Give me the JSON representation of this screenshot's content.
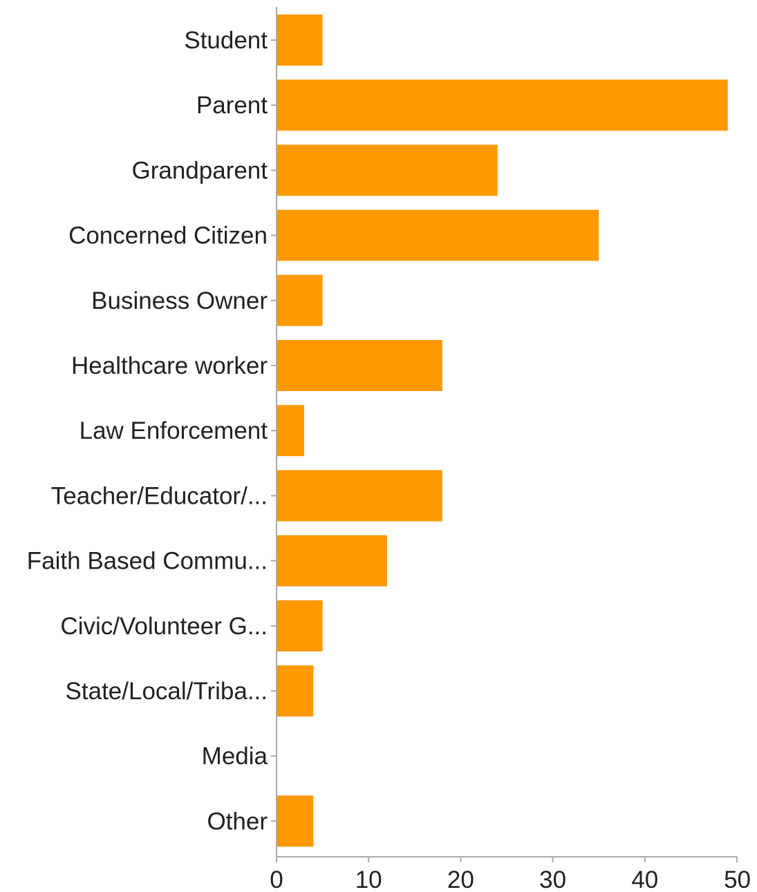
{
  "chart_data": {
    "type": "bar",
    "orientation": "horizontal",
    "categories": [
      "Student",
      "Parent",
      "Grandparent",
      "Concerned Citizen",
      "Business Owner",
      "Healthcare worker",
      "Law Enforcement",
      "Teacher/Educator/...",
      "Faith Based Commu...",
      "Civic/Volunteer G...",
      "State/Local/Triba...",
      "Media",
      "Other"
    ],
    "values": [
      5,
      49,
      24,
      35,
      5,
      18,
      3,
      18,
      12,
      5,
      4,
      0,
      4
    ],
    "xlim": [
      0,
      50
    ],
    "xticks": [
      "0",
      "10",
      "20",
      "30",
      "40",
      "50"
    ],
    "title": "",
    "xlabel": "",
    "ylabel": "",
    "grid": false,
    "bar_color": "#ff9900",
    "axis_color": "#aaaaaa"
  }
}
